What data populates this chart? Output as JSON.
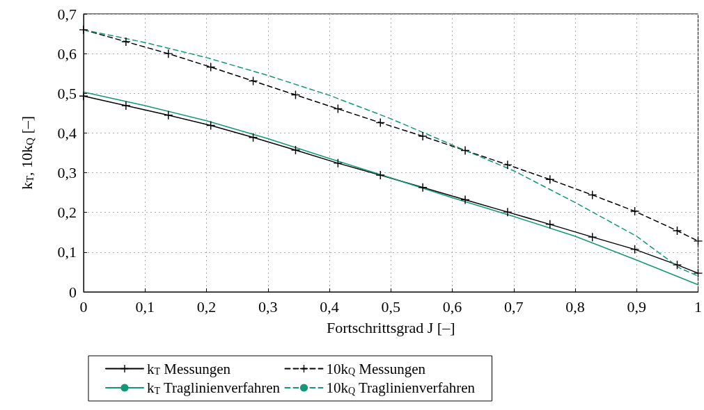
{
  "chart_data": {
    "type": "line",
    "xlabel": "Fortschrittsgrad J [–]",
    "ylabel": "k$_{T}$, 10k$_{Q}$ [–]",
    "xlim": [
      0,
      1
    ],
    "xticks": [
      0,
      {
        "value": 0.1,
        "label": "0,1"
      },
      {
        "value": 0.2,
        "label": "0,2"
      },
      {
        "value": 0.3,
        "label": "0,3"
      },
      {
        "value": 0.4,
        "label": "0,4"
      },
      {
        "value": 0.5,
        "label": "0,5"
      },
      {
        "value": 0.6,
        "label": "0,6"
      },
      {
        "value": 0.7,
        "label": "0,7"
      },
      {
        "value": 0.8,
        "label": "0,8"
      },
      {
        "value": 0.9,
        "label": "0,9"
      },
      1
    ],
    "ylim": [
      0,
      0.7
    ],
    "yticks": [
      0,
      {
        "value": 0.1,
        "label": "0,1"
      },
      {
        "value": 0.2,
        "label": "0,2"
      },
      {
        "value": 0.3,
        "label": "0,3"
      },
      {
        "value": 0.4,
        "label": "0,4"
      },
      {
        "value": 0.5,
        "label": "0,5"
      },
      {
        "value": 0.6,
        "label": "0,6"
      },
      {
        "value": 0.7,
        "label": "0,7"
      }
    ],
    "grid": true,
    "legend": "bottom",
    "series": [
      {
        "name": "k$_{T}$ Messungen",
        "color": "#000000",
        "marker": "cross",
        "line_style": "solid",
        "x": [
          0,
          0.069,
          0.138,
          0.207,
          0.276,
          0.345,
          0.414,
          0.483,
          0.552,
          0.621,
          0.69,
          0.759,
          0.828,
          0.897,
          0.966,
          1
        ],
        "values": [
          0.493,
          0.469,
          0.445,
          0.419,
          0.389,
          0.357,
          0.324,
          0.294,
          0.263,
          0.232,
          0.201,
          0.17,
          0.138,
          0.107,
          0.068,
          0.047
        ]
      },
      {
        "name": "k$_{T}$ Traglinienverfahren",
        "color": "#119977",
        "marker": "none",
        "line_style": "solid",
        "x": [
          0,
          0.1,
          0.2,
          0.3,
          0.4,
          0.5,
          0.6,
          0.7,
          0.8,
          0.9,
          1
        ],
        "values": [
          0.503,
          0.469,
          0.431,
          0.386,
          0.336,
          0.287,
          0.237,
          0.19,
          0.14,
          0.08,
          0.018
        ]
      },
      {
        "name": "10k$_{Q}$ Messungen",
        "color": "#000000",
        "marker": "cross",
        "line_style": "dashed",
        "x": [
          0,
          0.069,
          0.138,
          0.207,
          0.276,
          0.345,
          0.414,
          0.483,
          0.552,
          0.621,
          0.69,
          0.759,
          0.828,
          0.897,
          0.966,
          1
        ],
        "values": [
          0.66,
          0.63,
          0.6,
          0.566,
          0.531,
          0.496,
          0.461,
          0.426,
          0.392,
          0.356,
          0.32,
          0.283,
          0.244,
          0.203,
          0.154,
          0.128
        ]
      },
      {
        "name": "10k$_{Q}$ Traglinienverfahren",
        "color": "#119977",
        "marker": "none",
        "line_style": "dashed",
        "x": [
          0,
          0.1,
          0.2,
          0.3,
          0.4,
          0.5,
          0.6,
          0.7,
          0.8,
          0.9,
          0.97,
          1
        ],
        "values": [
          0.66,
          0.628,
          0.59,
          0.545,
          0.495,
          0.436,
          0.37,
          0.305,
          0.225,
          0.14,
          0.06,
          0.04
        ]
      }
    ]
  }
}
